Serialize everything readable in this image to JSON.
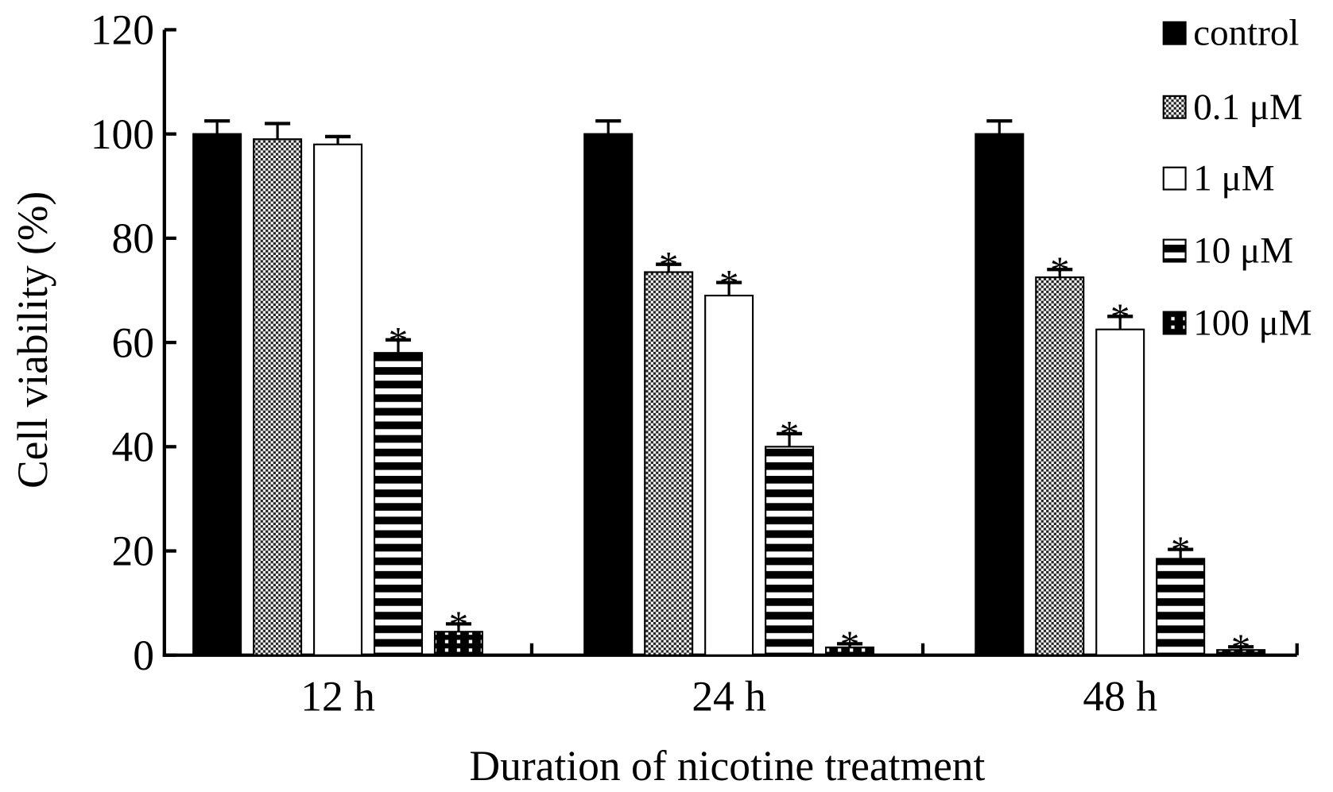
{
  "chart_data": {
    "type": "bar",
    "title": "",
    "xlabel": "Duration of nicotine treatment",
    "ylabel": "Cell viability (%)",
    "ylim": [
      0,
      120
    ],
    "yticks": [
      "0",
      "20",
      "40",
      "60",
      "80",
      "100",
      "120"
    ],
    "categories": [
      "12 h",
      "24 h",
      "48 h"
    ],
    "legend_position": "top-right",
    "series": [
      {
        "name": "control",
        "pattern": "solid",
        "values": [
          100,
          100,
          100
        ],
        "errors": [
          2.5,
          2.5,
          2.5
        ],
        "significant": [
          false,
          false,
          false
        ]
      },
      {
        "name": "0.1 μM",
        "pattern": "checker",
        "values": [
          99,
          73.5,
          72.5
        ],
        "errors": [
          3,
          1.5,
          1.5
        ],
        "significant": [
          false,
          true,
          true
        ]
      },
      {
        "name": "1 μM",
        "pattern": "white",
        "values": [
          98,
          69,
          62.5
        ],
        "errors": [
          1.5,
          2.5,
          2.5
        ],
        "significant": [
          false,
          true,
          true
        ]
      },
      {
        "name": "10 μM",
        "pattern": "hstripe",
        "values": [
          58,
          40,
          18.5
        ],
        "errors": [
          2.5,
          2.5,
          1.8
        ],
        "significant": [
          true,
          true,
          true
        ]
      },
      {
        "name": "100 μM",
        "pattern": "dots",
        "values": [
          4.5,
          1.5,
          1
        ],
        "errors": [
          1.5,
          0.7,
          0.6
        ],
        "significant": [
          true,
          true,
          true
        ]
      }
    ],
    "significance_marker": "*"
  }
}
